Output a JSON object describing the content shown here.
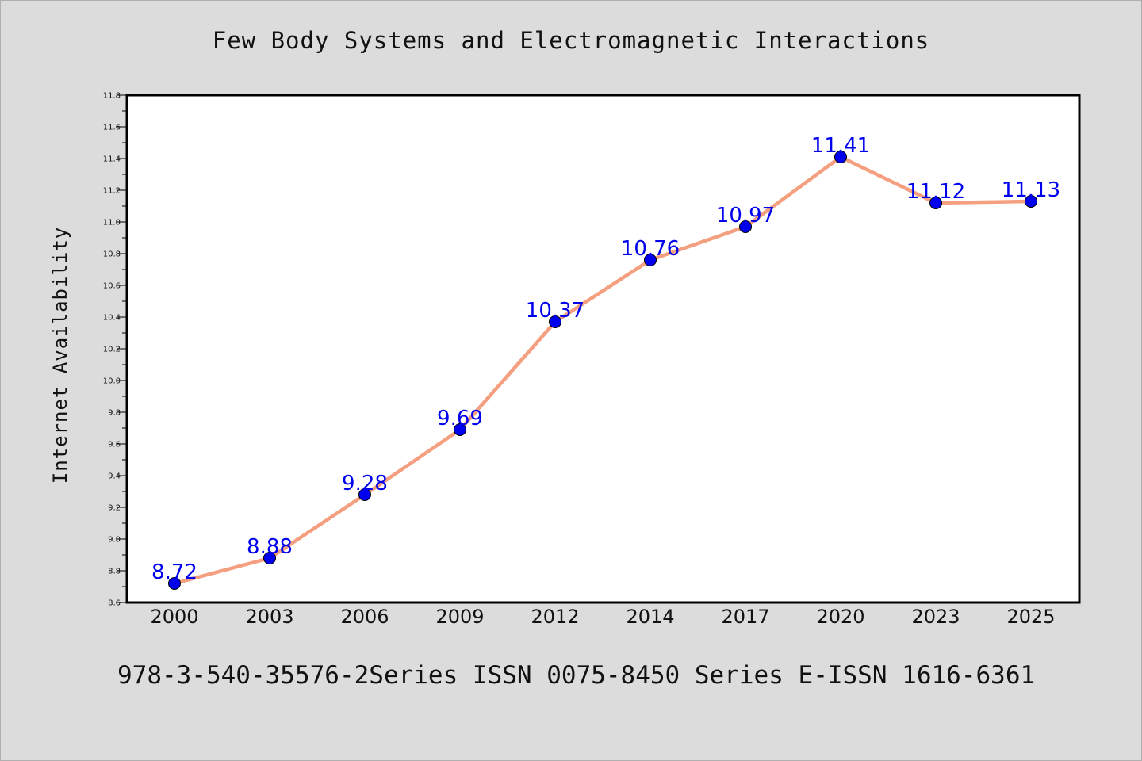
{
  "title": "Few Body Systems and Electromagnetic Interactions",
  "footer": "978-3-540-35576-2Series ISSN 0075-8450 Series E-ISSN 1616-6361",
  "colors": {
    "background": "#dcdcdc",
    "plot_background": "#ffffff",
    "line": "#f4a080",
    "marker": "#0000ee",
    "label": "#0000ee"
  },
  "chart_data": {
    "type": "line",
    "title": "Few Body Systems and Electromagnetic Interactions",
    "xlabel": "",
    "ylabel": "Internet Availability",
    "categories": [
      "2000",
      "2003",
      "2006",
      "2009",
      "2012",
      "2014",
      "2017",
      "2020",
      "2023",
      "2025"
    ],
    "series": [
      {
        "values": [
          8.72,
          8.88,
          9.28,
          9.69,
          10.37,
          10.76,
          10.97,
          11.41,
          11.12,
          11.13
        ]
      }
    ],
    "data_labels": [
      "8.72",
      "8.88",
      "9.28",
      "9.69",
      "10.37",
      "10.76",
      "10.97",
      "11.41",
      "11.12",
      "11.13"
    ],
    "ylim": [
      8.6,
      11.8
    ],
    "yticks": [
      "8.6",
      "8.8",
      "9.0",
      "9.2",
      "9.4",
      "9.6",
      "9.8",
      "10.0",
      "10.2",
      "10.4",
      "10.6",
      "10.8",
      "11.0",
      "11.2",
      "11.4",
      "11.6",
      "11.8"
    ],
    "grid": false,
    "legend": "none"
  }
}
